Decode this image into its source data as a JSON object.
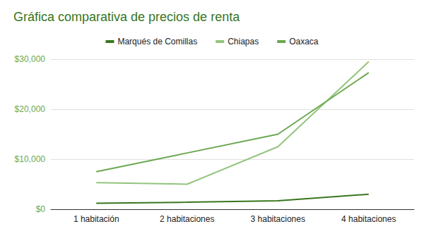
{
  "chart_data": {
    "type": "line",
    "title": "Gráfica comparativa de precios de renta",
    "categories": [
      "1 habitación",
      "2 habitaciones",
      "3 habitaciones",
      "4 habitaciones"
    ],
    "series": [
      {
        "name": "Marqués de Comillas",
        "color": "#38761d",
        "values": [
          1200,
          1400,
          1700,
          3000
        ]
      },
      {
        "name": "Chiapas",
        "color": "#93c47d",
        "values": [
          5300,
          5000,
          12500,
          29500
        ]
      },
      {
        "name": "Oaxaca",
        "color": "#6aa84f",
        "values": [
          7500,
          11250,
          15000,
          27300
        ]
      }
    ],
    "ylim": [
      0,
      30000
    ],
    "yticks": [
      {
        "value": 0,
        "label": "$0"
      },
      {
        "value": 10000,
        "label": "$10,000"
      },
      {
        "value": 20000,
        "label": "$20,000"
      },
      {
        "value": 30000,
        "label": "$30,000"
      }
    ],
    "grid": true,
    "legend": "top"
  }
}
